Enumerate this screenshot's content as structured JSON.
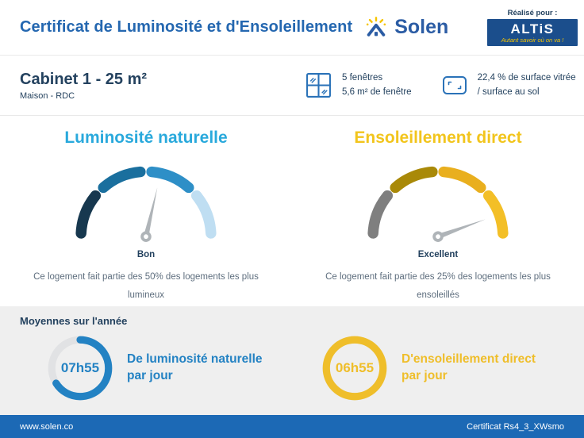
{
  "header": {
    "title": "Certificat de Luminosité et d'Ensoleillement",
    "brand": "Solen",
    "realise_pour": "Réalisé pour :",
    "altis_name": "ALTiS",
    "altis_tagline": "Autant savoir où on va !"
  },
  "property": {
    "name": "Cabinet 1 - 25 m²",
    "type": "Maison - RDC",
    "windows_line1": "5 fenêtres",
    "windows_line2": "5,6 m² de fenêtre",
    "glazing_line1": "22,4 % de surface vitrée",
    "glazing_line2": "/ surface au sol"
  },
  "gauges": {
    "luminosity": {
      "title": "Luminosité naturelle",
      "title_color": "#29A9DC",
      "rating": "Bon",
      "description": "Ce logement fait partie des 50% des logements les plus lumineux",
      "needle_angle_deg": 13,
      "segment_colors": [
        "#17384F",
        "#1A6F9E",
        "#2E8FC7",
        "#BFDEF2"
      ]
    },
    "sunlight": {
      "title": "Ensoleillement direct",
      "title_color": "#F2C51D",
      "rating": "Excellent",
      "description": "Ce logement fait partie des 25% des logements les plus ensoleillés",
      "needle_angle_deg": 70,
      "segment_colors": [
        "#7F7F7F",
        "#A98908",
        "#E9AF1E",
        "#F3BF27"
      ]
    }
  },
  "averages": {
    "heading": "Moyennes sur l'année",
    "luminosity": {
      "time": "07h55",
      "label_line1": "De luminosité naturelle",
      "label_line2": "par jour",
      "ring_percent": 66,
      "color": "#2382C3",
      "track_color": "#E1E2E4"
    },
    "sunlight": {
      "time": "06h55",
      "label_line1": "D'ensoleillement direct",
      "label_line2": "par jour",
      "ring_percent": 100,
      "color": "#EFBE2A",
      "track_color": "#E1E2E4"
    }
  },
  "footer": {
    "left": "www.solen.co",
    "right": "Certificat Rs4_3_XWsmo"
  }
}
